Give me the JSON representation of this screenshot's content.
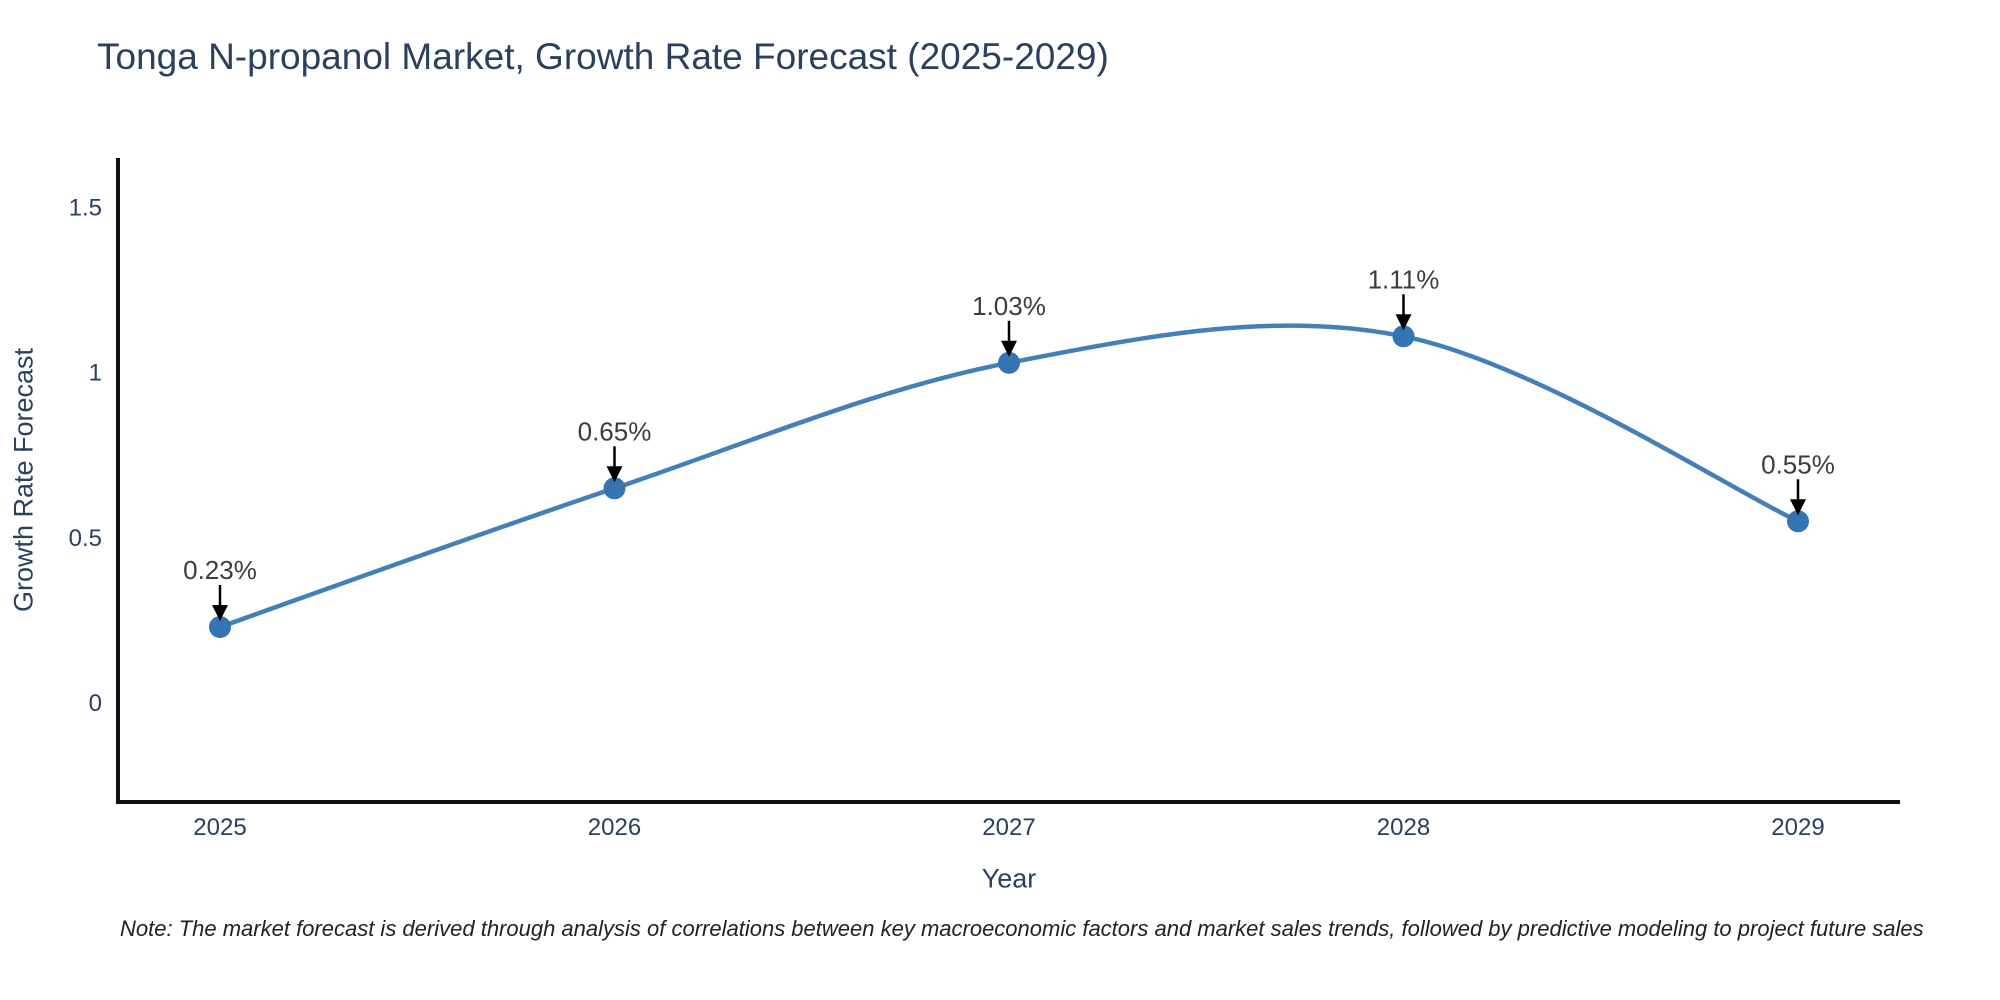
{
  "figure": {
    "title": "Tonga N-propanol Market, Growth Rate Forecast (2025-2029)"
  },
  "note": {
    "text": "Note: The market forecast is derived through analysis of correlations between key macroeconomic factors and market sales trends, followed by predictive modeling to project future sales"
  },
  "chart_data": {
    "type": "line",
    "line_shape": "spline",
    "title": "Tonga N-propanol Market, Growth Rate Forecast (2025-2029)",
    "xlabel": "Year",
    "ylabel": "Growth Rate Forecast",
    "categories": [
      "2025",
      "2026",
      "2027",
      "2028",
      "2029"
    ],
    "series": [
      {
        "name": "Growth Rate Forecast",
        "values": [
          0.23,
          0.65,
          1.03,
          1.11,
          0.55
        ]
      }
    ],
    "point_labels": [
      "0.23%",
      "0.65%",
      "1.03%",
      "1.11%",
      "0.55%"
    ],
    "yticks": {
      "values": [
        0,
        0.5,
        1,
        1.5
      ],
      "labels": [
        "0",
        "0.5",
        "1",
        "1.5"
      ]
    },
    "ylim": [
      -0.3,
      1.65
    ],
    "grid": false,
    "legend_position": "none",
    "markers": true,
    "annotation_arrows": true,
    "colors": {
      "line": "#4480b8",
      "marker": "#3474b2",
      "axis": "#111111",
      "tick_text": "#2a3f5f",
      "annotation_text": "#3d3d3d",
      "arrow": "#000000",
      "title_text": "#2b3f5f",
      "note_text": "#222222",
      "background": "#ffffff"
    }
  }
}
